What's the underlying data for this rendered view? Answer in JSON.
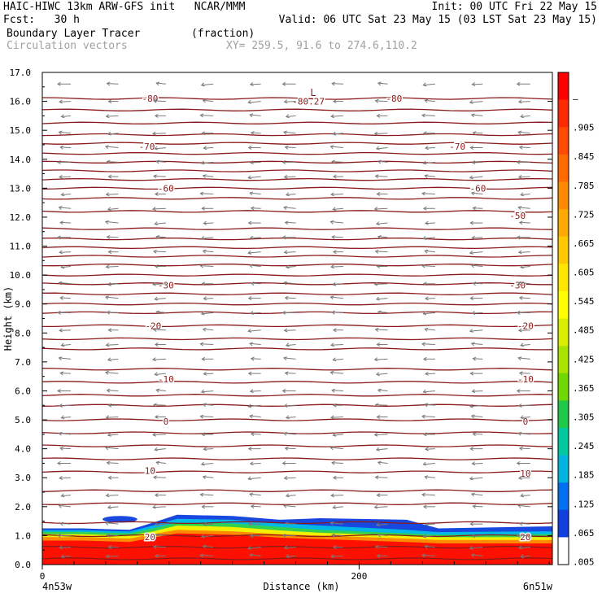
{
  "header": {
    "line1_left": "HAIC-HIWC 13km ARW-GFS init   NCAR/MMM",
    "line1_right": "Init: 00 UTC Fri 22 May 15",
    "line2_left": "Fcst:   30 h",
    "line2_right": "Valid: 06 UTC Sat 23 May 15 (03 LST Sat 23 May 15)",
    "line3_left": "Boundary Layer Tracer        (fraction)",
    "line4_left": "Circulation vectors",
    "line4_mid": "XY= 259.5, 91.6 to 274.6,110.2"
  },
  "colors": {
    "contour": "#8b1a1a",
    "vector": "#7a7a7a"
  },
  "chart_data": {
    "type": "heatmap",
    "xlabel": "Distance (km)",
    "ylabel": "Height (km)",
    "x_range": [
      0,
      322
    ],
    "ylim": [
      0,
      17
    ],
    "x_ticks": [
      {
        "value": 0,
        "label": "0"
      },
      {
        "value": 200,
        "label": "200"
      }
    ],
    "x_endpoints": {
      "left": "4n53w",
      "right": "6n51w"
    },
    "y_ticks": [
      0.0,
      1.0,
      2.0,
      3.0,
      4.0,
      5.0,
      6.0,
      7.0,
      8.0,
      9.0,
      10.0,
      11.0,
      12.0,
      13.0,
      14.0,
      15.0,
      16.0,
      17.0
    ],
    "y_tick_labels": [
      "0.0",
      "1.0",
      "2.0",
      "3.0",
      "4.0",
      "5.0",
      "6.0",
      "7.0",
      "8.0",
      "9.0",
      "10.0",
      "11.0",
      "12.0",
      "13.0",
      "14.0",
      "15.0",
      "16.0",
      "17.0"
    ],
    "colorbar": {
      "labels": [
        "–",
        ".905",
        ".845",
        ".785",
        ".725",
        ".665",
        ".605",
        ".545",
        ".485",
        ".425",
        ".365",
        ".305",
        ".245",
        ".185",
        ".125",
        ".065",
        ".005"
      ],
      "colors": [
        "#ff0000",
        "#ff2a00",
        "#ff4a00",
        "#ff6a00",
        "#ff8a00",
        "#ffaa00",
        "#ffc800",
        "#ffe600",
        "#ffff00",
        "#d8f000",
        "#a8e400",
        "#70d800",
        "#20c848",
        "#00c8a0",
        "#00b4e0",
        "#0070f0",
        "#1040e0",
        "#ffffff"
      ]
    },
    "tracer_field": [
      {
        "x": 0,
        "top": 1.25,
        "orange": 0.95,
        "yellow": 1.05,
        "green": 1.13,
        "cyan": 1.19
      },
      {
        "x": 25,
        "top": 1.25,
        "orange": 0.95,
        "yellow": 1.05,
        "green": 1.13,
        "cyan": 1.19
      },
      {
        "x": 55,
        "top": 1.2,
        "orange": 0.9,
        "yellow": 1.0,
        "green": 1.08,
        "cyan": 1.14
      },
      {
        "x": 70,
        "top": 1.45,
        "orange": 1.05,
        "yellow": 1.15,
        "green": 1.25,
        "cyan": 1.35
      },
      {
        "x": 85,
        "top": 1.72,
        "orange": 1.2,
        "yellow": 1.35,
        "green": 1.45,
        "cyan": 1.58
      },
      {
        "x": 120,
        "top": 1.68,
        "orange": 1.15,
        "yellow": 1.3,
        "green": 1.42,
        "cyan": 1.55
      },
      {
        "x": 150,
        "top": 1.55,
        "orange": 1.05,
        "yellow": 1.18,
        "green": 1.3,
        "cyan": 1.42
      },
      {
        "x": 175,
        "top": 1.6,
        "orange": 1.0,
        "yellow": 1.1,
        "green": 1.2,
        "cyan": 1.35
      },
      {
        "x": 230,
        "top": 1.55,
        "orange": 0.9,
        "yellow": 1.0,
        "green": 1.08,
        "cyan": 1.2
      },
      {
        "x": 250,
        "top": 1.25,
        "orange": 0.85,
        "yellow": 0.95,
        "green": 1.03,
        "cyan": 1.12
      },
      {
        "x": 322,
        "top": 1.32,
        "orange": 0.85,
        "yellow": 0.95,
        "green": 1.05,
        "cyan": 1.15
      }
    ],
    "tracer_blob": {
      "x": [
        38,
        60
      ],
      "y": [
        1.45,
        1.68
      ]
    },
    "contours": [
      {
        "levels": [
          0.2,
          0.6,
          1.0,
          1.45,
          2.1,
          2.55,
          3.2,
          3.65,
          4.1,
          4.55,
          5.0,
          5.5,
          5.85,
          6.3,
          6.75,
          7.45,
          7.8,
          8.25,
          8.7,
          9.0,
          9.35,
          9.7,
          10.0,
          10.35,
          10.65,
          10.95,
          11.25,
          11.6,
          12.2,
          12.65,
          13.0,
          13.3,
          13.6,
          13.9,
          14.2,
          14.55,
          14.85,
          15.25,
          15.7,
          16.1
        ]
      }
    ],
    "contour_labels": [
      {
        "x": 68,
        "y": 3.25,
        "label": "10"
      },
      {
        "x": 305,
        "y": 3.15,
        "label": "10"
      },
      {
        "x": 68,
        "y": 0.95,
        "label": "20"
      },
      {
        "x": 305,
        "y": 0.95,
        "label": "20"
      },
      {
        "x": 78,
        "y": 6.4,
        "label": "-10"
      },
      {
        "x": 305,
        "y": 6.4,
        "label": "-10"
      },
      {
        "x": 78,
        "y": 4.95,
        "label": "0"
      },
      {
        "x": 305,
        "y": 4.95,
        "label": "0"
      },
      {
        "x": 70,
        "y": 8.25,
        "label": "-20"
      },
      {
        "x": 305,
        "y": 8.25,
        "label": "-20"
      },
      {
        "x": 78,
        "y": 9.65,
        "label": "-30"
      },
      {
        "x": 300,
        "y": 9.65,
        "label": "-30"
      },
      {
        "x": 300,
        "y": 12.05,
        "label": "-50"
      },
      {
        "x": 78,
        "y": 13.0,
        "label": "-60"
      },
      {
        "x": 275,
        "y": 13.0,
        "label": "-60"
      },
      {
        "x": 66,
        "y": 14.45,
        "label": "-70"
      },
      {
        "x": 262,
        "y": 14.45,
        "label": "-70"
      },
      {
        "x": 68,
        "y": 16.1,
        "label": "-80"
      },
      {
        "x": 222,
        "y": 16.1,
        "label": "-80"
      },
      {
        "x": 168,
        "y": 16.0,
        "label": "-80.27"
      }
    ],
    "low_marker": {
      "x": 171,
      "y": 16.3,
      "label": "L"
    },
    "vector_columns": [
      18,
      48,
      78,
      108,
      138,
      160,
      190,
      218,
      248,
      278,
      308
    ],
    "vector_rows": [
      0.3,
      0.6,
      1.0,
      1.4,
      2.0,
      2.4,
      3.0,
      3.5,
      4.0,
      4.5,
      5.1,
      5.5,
      6.0,
      6.6,
      7.1,
      7.6,
      8.1,
      8.7,
      9.2,
      9.7,
      10.3,
      10.8,
      11.3,
      11.8,
      12.3,
      12.8,
      13.4,
      13.9,
      14.4,
      14.9,
      15.5,
      16.0,
      16.6
    ]
  }
}
